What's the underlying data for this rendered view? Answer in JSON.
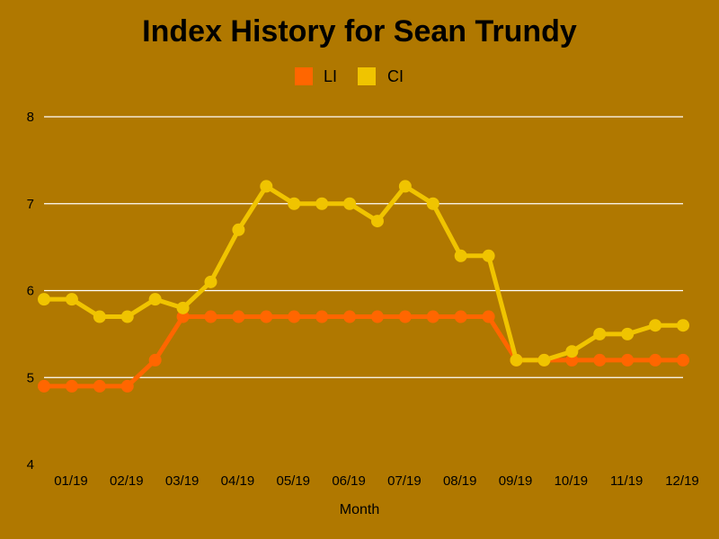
{
  "chart_data": {
    "type": "line",
    "title": "Index History for Sean Trundy",
    "xlabel": "Month",
    "ylabel": "",
    "ylim": [
      4,
      8
    ],
    "yticks": [
      "4",
      "5",
      "6",
      "7",
      "8"
    ],
    "xticks": [
      "01/19",
      "02/19",
      "03/19",
      "04/19",
      "05/19",
      "06/19",
      "07/19",
      "08/19",
      "09/19",
      "10/19",
      "11/19",
      "12/19"
    ],
    "grid": "horizontal",
    "legend": "top-center",
    "series": [
      {
        "name": "LI",
        "color": "#ff6600",
        "values": [
          4.9,
          4.9,
          4.9,
          4.9,
          5.2,
          5.7,
          5.7,
          5.7,
          5.7,
          5.7,
          5.7,
          5.7,
          5.7,
          5.7,
          5.7,
          5.7,
          5.7,
          5.2,
          5.2,
          5.2,
          5.2,
          5.2,
          5.2,
          5.2
        ]
      },
      {
        "name": "CI",
        "color": "#f0c400",
        "values": [
          5.9,
          5.9,
          5.7,
          5.7,
          5.9,
          5.8,
          6.1,
          6.7,
          7.2,
          7.0,
          7.0,
          7.0,
          6.8,
          7.2,
          7.0,
          6.4,
          6.4,
          5.2,
          5.2,
          5.3,
          5.5,
          5.5,
          5.6,
          5.6
        ]
      }
    ]
  }
}
